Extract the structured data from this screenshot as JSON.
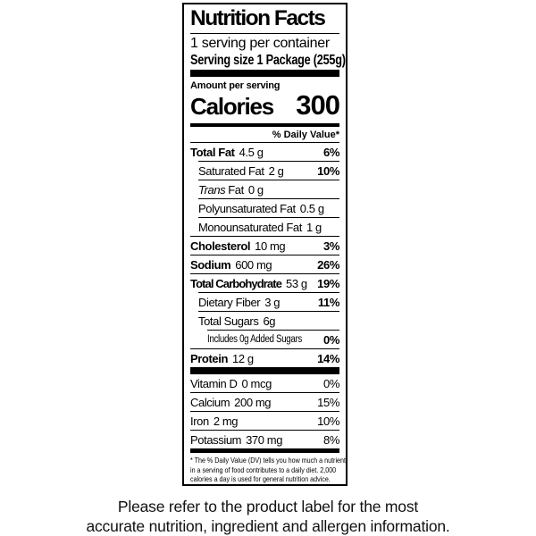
{
  "page": {
    "footer_line1": "Please refer to the product label for the most",
    "footer_line2": "accurate nutrition, ingredient and allergen information."
  },
  "label": {
    "title": "Nutrition Facts",
    "serving_per_container": "1 serving per container",
    "serving_size": "Serving size 1 Package (255g)",
    "amount_per_serving": "Amount per serving",
    "calories_label": "Calories",
    "calories_value": "300",
    "daily_value_header": "% Daily Value*",
    "nutrients": [
      {
        "name": "Total Fat",
        "amount": "4.5 g",
        "dv": "6%"
      },
      {
        "name": "Saturated Fat",
        "amount": "2 g",
        "dv": "10%"
      },
      {
        "name_italic": "Trans",
        "name": "Fat",
        "amount": "0 g",
        "dv": ""
      },
      {
        "name": "Polyunsaturated Fat",
        "amount": "0.5 g",
        "dv": ""
      },
      {
        "name": "Monounsaturated Fat",
        "amount": "1 g",
        "dv": ""
      },
      {
        "name": "Cholesterol",
        "amount": "10 mg",
        "dv": "3%"
      },
      {
        "name": "Sodium",
        "amount": "600 mg",
        "dv": "26%"
      },
      {
        "name": "Total Carbohydrate",
        "amount": "53 g",
        "dv": "19%"
      },
      {
        "name": "Dietary Fiber",
        "amount": "3 g",
        "dv": "11%"
      },
      {
        "name": "Total Sugars",
        "amount": "6g",
        "dv": ""
      },
      {
        "name": "Includes 0g Added Sugars",
        "amount": "",
        "dv": "0%"
      },
      {
        "name": "Protein",
        "amount": "12 g",
        "dv": "14%"
      }
    ],
    "vitamins": [
      {
        "name": "Vitamin D",
        "amount": "0 mcg",
        "dv": "0%"
      },
      {
        "name": "Calcium",
        "amount": "200 mg",
        "dv": "15%"
      },
      {
        "name": "Iron",
        "amount": "2 mg",
        "dv": "10%"
      },
      {
        "name": "Potassium",
        "amount": "370 mg",
        "dv": "8%"
      }
    ],
    "footnote_line1": "* The % Daily Value (DV) tells you how much a nutrient",
    "footnote_line2": "in a serving of food contributes to a daily diet. 2,000",
    "footnote_line3": "calories a day is used for general nutrition advice."
  }
}
